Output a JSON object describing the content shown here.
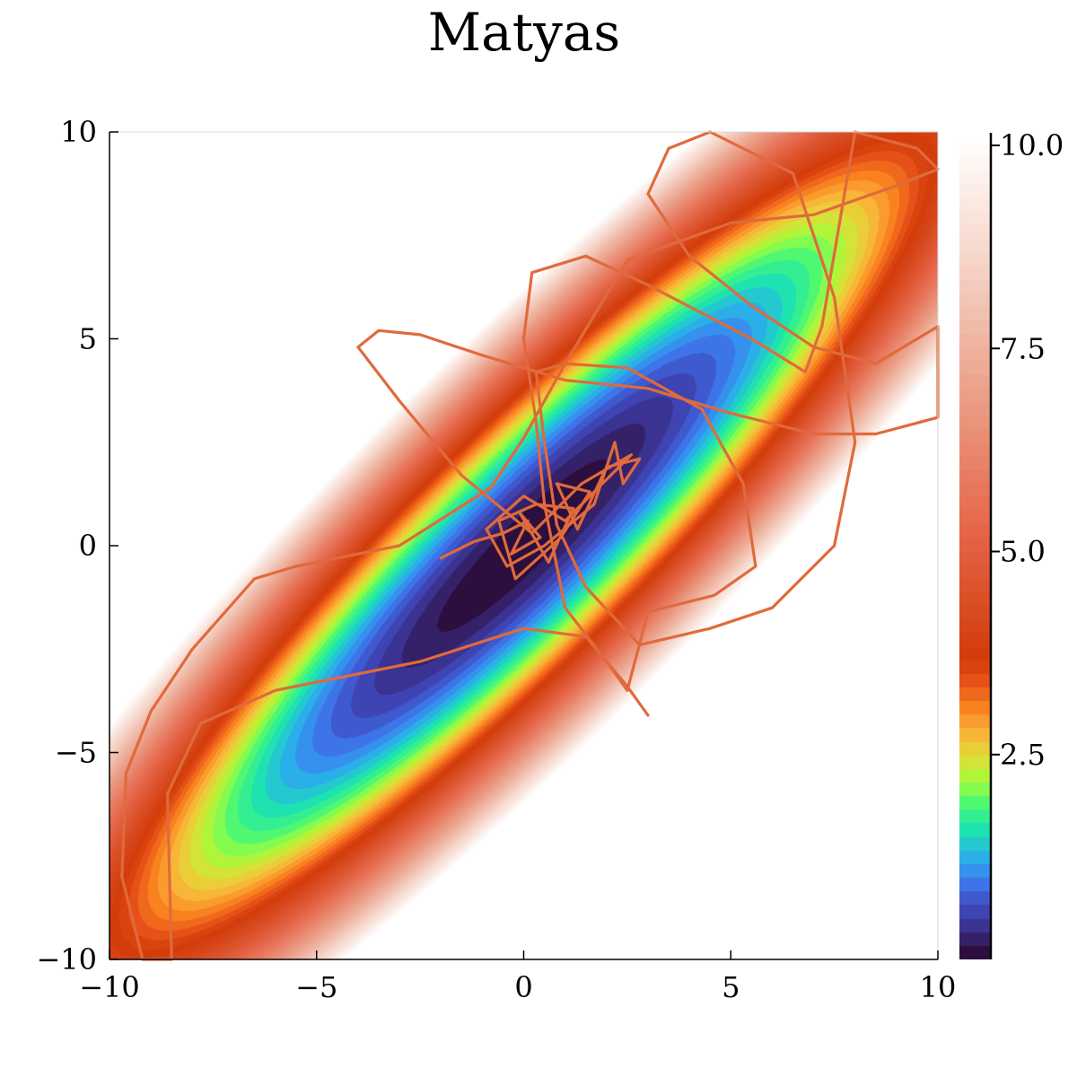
{
  "chart_data": {
    "type": "heatmap",
    "subtype": "filled-contour with trajectory overlay",
    "title": "Matyas",
    "xlabel": "",
    "ylabel": "",
    "xlim": [
      -10,
      10
    ],
    "ylim": [
      -10,
      10
    ],
    "x_ticks": [
      "−10",
      "−5",
      "0",
      "5",
      "10"
    ],
    "y_ticks": [
      "−10",
      "−5",
      "0",
      "5",
      "10"
    ],
    "grid": false,
    "function": "f(x,y) = 0.26*(x^2 + y^2) - 0.48*x*y",
    "colorbar": {
      "range": [
        0,
        10
      ],
      "tick_labels": [
        "2.5",
        "5.0",
        "7.5",
        "10.0"
      ],
      "tick_values": [
        2.5,
        5.0,
        7.5,
        10.0
      ],
      "colors": {
        "low": [
          "#2c0f3e",
          "#3b2f8a",
          "#3f4fc6",
          "#3d7ef0",
          "#28b5e8",
          "#1ee3b0",
          "#46f879",
          "#a3fc3c",
          "#e2dc37",
          "#fbb138",
          "#f9821f",
          "#e8541a",
          "#d13b08"
        ],
        "high": [
          "#d13b08",
          "#e5664a",
          "#eb9e86",
          "#f5d2c6",
          "#ffffff"
        ]
      }
    },
    "series": [
      {
        "color": "#e06a3c",
        "points": [
          [
            -2.0,
            -0.3
          ],
          [
            -1.2,
            0.1
          ],
          [
            -0.5,
            0.3
          ],
          [
            0.1,
            0.6
          ],
          [
            -0.3,
            -0.2
          ],
          [
            0.4,
            0.2
          ],
          [
            -0.1,
            0.8
          ],
          [
            0.6,
            -0.4
          ],
          [
            1.2,
            0.9
          ],
          [
            0.3,
            1.0
          ],
          [
            -0.6,
            0.6
          ],
          [
            -0.2,
            -0.8
          ],
          [
            0.9,
            0.2
          ],
          [
            1.6,
            1.3
          ],
          [
            0.8,
            1.5
          ],
          [
            1.3,
            0.4
          ],
          [
            2.0,
            1.9
          ],
          [
            2.8,
            2.1
          ],
          [
            2.4,
            1.5
          ],
          [
            2.2,
            2.5
          ],
          [
            1.7,
            1.0
          ],
          [
            0.5,
            0.0
          ],
          [
            -0.4,
            -0.5
          ],
          [
            -0.9,
            0.4
          ],
          [
            0.0,
            1.2
          ],
          [
            1.0,
            0.6
          ],
          [
            2.6,
            2.2
          ],
          [
            1.4,
            1.5
          ],
          [
            0.2,
            0.3
          ],
          [
            -1.5,
            1.7
          ],
          [
            -3.0,
            3.5
          ],
          [
            -4.0,
            4.8
          ],
          [
            -3.5,
            5.2
          ],
          [
            -2.5,
            5.1
          ],
          [
            -1.0,
            4.6
          ],
          [
            1.0,
            4.0
          ],
          [
            3.0,
            3.8
          ],
          [
            5.0,
            3.2
          ],
          [
            7.0,
            2.7
          ],
          [
            8.5,
            2.7
          ],
          [
            10.0,
            3.1
          ],
          [
            10.0,
            5.3
          ],
          [
            8.5,
            4.4
          ],
          [
            7.0,
            4.8
          ],
          [
            5.5,
            5.8
          ],
          [
            4.0,
            7.0
          ],
          [
            3.0,
            8.5
          ],
          [
            3.5,
            9.6
          ],
          [
            4.5,
            10.0
          ],
          [
            6.5,
            9.0
          ],
          [
            7.5,
            6.0
          ],
          [
            8.0,
            2.5
          ],
          [
            7.5,
            0.0
          ],
          [
            6.0,
            -1.5
          ],
          [
            4.5,
            -2.0
          ],
          [
            2.8,
            -2.4
          ],
          [
            1.5,
            -1.0
          ],
          [
            0.8,
            0.5
          ],
          [
            0.5,
            2.5
          ],
          [
            0.3,
            4.2
          ],
          [
            1.0,
            4.4
          ],
          [
            2.5,
            4.3
          ],
          [
            4.3,
            3.3
          ],
          [
            5.3,
            1.5
          ],
          [
            5.6,
            -0.5
          ],
          [
            4.6,
            -1.2
          ],
          [
            3.0,
            -1.6
          ],
          [
            2.5,
            -3.5
          ],
          [
            2.0,
            -2.8
          ],
          [
            1.0,
            -1.5
          ],
          [
            0.5,
            1.0
          ],
          [
            0.3,
            3.0
          ],
          [
            0.0,
            5.0
          ],
          [
            0.2,
            6.6
          ],
          [
            1.5,
            7.0
          ],
          [
            3.0,
            6.3
          ],
          [
            5.5,
            5.0
          ],
          [
            6.8,
            4.2
          ],
          [
            7.2,
            5.3
          ],
          [
            8.0,
            10.0
          ],
          [
            9.5,
            9.6
          ],
          [
            10.0,
            9.1
          ],
          [
            9.0,
            8.7
          ],
          [
            7.0,
            8.0
          ],
          [
            5.0,
            7.8
          ],
          [
            2.5,
            6.9
          ],
          [
            1.0,
            4.4
          ],
          [
            0.0,
            2.6
          ],
          [
            -0.8,
            1.4
          ],
          [
            -3.0,
            0.0
          ],
          [
            -5.5,
            -0.5
          ],
          [
            -6.5,
            -0.8
          ],
          [
            -8.0,
            -2.5
          ],
          [
            -9.0,
            -4.0
          ],
          [
            -9.6,
            -5.5
          ],
          [
            -9.7,
            -8.0
          ],
          [
            -9.2,
            -10.0
          ],
          [
            -8.5,
            -10.0
          ],
          [
            -8.6,
            -6.0
          ],
          [
            -7.8,
            -4.3
          ],
          [
            -6.0,
            -3.5
          ],
          [
            -4.5,
            -3.2
          ],
          [
            -2.5,
            -2.8
          ],
          [
            0.0,
            -2.0
          ],
          [
            1.5,
            -2.2
          ],
          [
            2.5,
            -3.4
          ],
          [
            3.0,
            -4.1
          ]
        ]
      }
    ]
  }
}
